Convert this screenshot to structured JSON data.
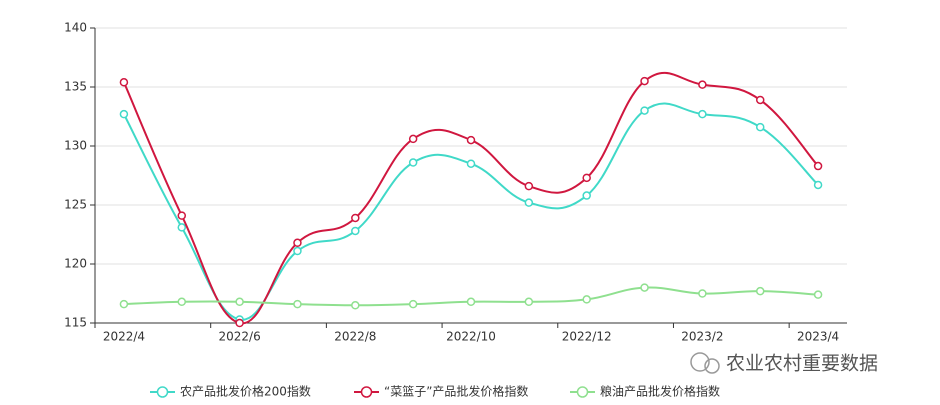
{
  "chart_data": {
    "type": "line",
    "categories": [
      "2022/4",
      null,
      "2022/6",
      null,
      "2022/8",
      null,
      "2022/10",
      null,
      "2022/12",
      null,
      "2023/2",
      null,
      "2023/4"
    ],
    "series": [
      {
        "name": "农产品批发价格200指数",
        "color": "#40d9c8",
        "values": [
          132.7,
          123.1,
          115.3,
          121.1,
          122.8,
          128.6,
          128.5,
          125.2,
          125.8,
          133.0,
          132.7,
          131.6,
          126.7
        ]
      },
      {
        "name": "“菜篮子”产品批发价格指数",
        "color": "#d0173f",
        "values": [
          135.4,
          124.1,
          115.0,
          121.8,
          123.9,
          130.6,
          130.5,
          126.6,
          127.3,
          135.5,
          135.2,
          133.9,
          128.3
        ]
      },
      {
        "name": "粮油产品批发价格指数",
        "color": "#8fe08f",
        "values": [
          116.6,
          116.8,
          116.8,
          116.6,
          116.5,
          116.6,
          116.8,
          116.8,
          117.0,
          118.0,
          117.5,
          117.7,
          117.4
        ]
      }
    ],
    "ylim": [
      115,
      140
    ],
    "yticks": [
      115,
      120,
      125,
      130,
      135,
      140
    ],
    "grid": true,
    "legend": "bottom",
    "smooth": true,
    "watermark": "农业农村重要数据"
  }
}
